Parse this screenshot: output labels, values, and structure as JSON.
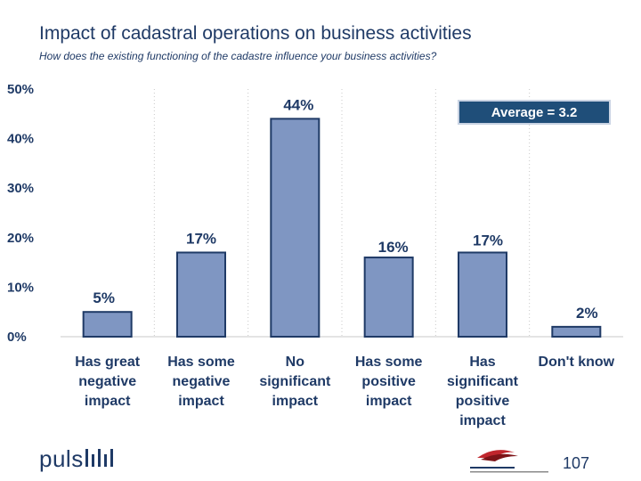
{
  "title": "Impact of cadastral operations on business activities",
  "subtitle": "How does the existing functioning of the cadastre influence your business activities?",
  "average_label": "Average = 3.2",
  "logo_text": "puls",
  "page_number": "107",
  "colors": {
    "bar_fill": "#7f96c2",
    "bar_stroke": "#1f3a66",
    "axis_text": "#1f3a66",
    "average_box": "#1f4e79"
  },
  "chart_data": {
    "type": "bar",
    "categories": [
      [
        "Has great",
        "negative",
        "impact"
      ],
      [
        "Has some",
        "negative",
        "impact"
      ],
      [
        "No",
        "significant",
        "impact"
      ],
      [
        "Has some",
        "positive",
        "impact"
      ],
      [
        "Has",
        "significant",
        "positive",
        "impact"
      ],
      [
        "Don't know"
      ]
    ],
    "values": [
      5,
      17,
      44,
      16,
      17,
      2
    ],
    "data_labels": [
      "5%",
      "17%",
      "44%",
      "16%",
      "17%",
      "2%"
    ],
    "yticks": [
      "0%",
      "10%",
      "20%",
      "30%",
      "40%",
      "50%"
    ],
    "ylim": [
      0,
      50
    ],
    "grid": true
  }
}
